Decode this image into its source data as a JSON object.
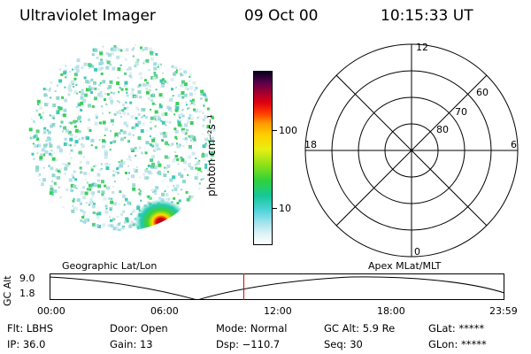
{
  "header": {
    "instrument": "Ultraviolet Imager",
    "date": "09 Oct 00",
    "time": "10:15:33 UT"
  },
  "colorbar": {
    "unit": "photon cm⁻²s⁻¹",
    "ticks": [
      "100",
      "10"
    ]
  },
  "polar_plot": {
    "mlt_labels": {
      "top": "12",
      "left": "18",
      "right": "6",
      "bottom": "0"
    },
    "lat_labels": [
      "60",
      "70",
      "80"
    ]
  },
  "timeline": {
    "left_title": "Geographic Lat/Lon",
    "right_title": "Apex MLat/MLT",
    "ylabel": "GC Alt",
    "y_ticks": [
      "9.0",
      "1.8"
    ],
    "x_ticks": [
      "00:00",
      "06:00",
      "12:00",
      "18:00",
      "23:59"
    ],
    "current_time_fraction": 0.427,
    "marker_color": "#e00000"
  },
  "info": {
    "filter": "Flt: LBHS",
    "ip": "IP: 36.0",
    "door": "Door: Open",
    "gain": "Gain: 13",
    "mode": "Mode: Normal",
    "dsp": "Dsp: −110.7",
    "gc_alt": "GC Alt: 5.9 Re",
    "seq": "Seq: 30",
    "glat": "GLat: *****",
    "glon": "GLon: *****"
  }
}
